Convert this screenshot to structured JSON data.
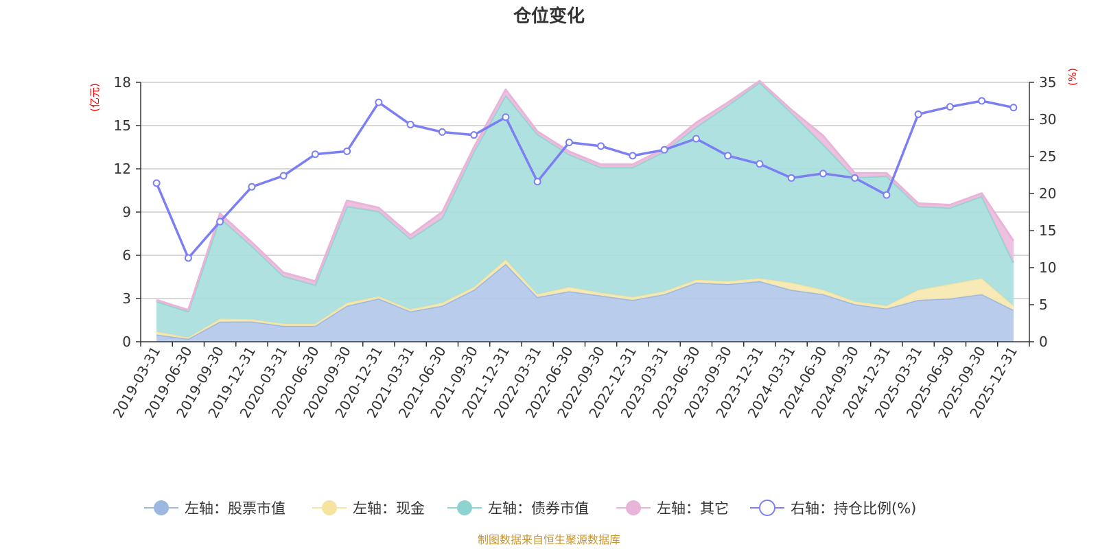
{
  "chart_data": {
    "type": "area",
    "title": "仓位变化",
    "left_axis_unit": "(亿元)",
    "right_axis_unit": "(%)",
    "left_ylim": [
      0,
      18
    ],
    "left_ticks": [
      0,
      3,
      6,
      9,
      12,
      15,
      18
    ],
    "right_ylim": [
      0,
      35
    ],
    "right_ticks": [
      0,
      5,
      10,
      15,
      20,
      25,
      30,
      35
    ],
    "categories": [
      "2019-03-31",
      "2019-06-30",
      "2019-09-30",
      "2019-12-31",
      "2020-03-31",
      "2020-06-30",
      "2020-09-30",
      "2020-12-31",
      "2021-03-31",
      "2021-06-30",
      "2021-09-30",
      "2021-12-31",
      "2022-03-31",
      "2022-06-30",
      "2022-09-30",
      "2022-12-31",
      "2023-03-31",
      "2023-06-30",
      "2023-09-30",
      "2023-12-31",
      "2024-03-31",
      "2024-06-30",
      "2024-09-30",
      "2024-12-31",
      "2025-03-31",
      "2025-06-30",
      "2025-09-30",
      "2025-12-31"
    ],
    "series": [
      {
        "name": "左轴：股票市值",
        "axis": "left",
        "stack": true,
        "color": "#9db8e0",
        "fill": "#b4c8ea",
        "values": [
          0.5,
          0.2,
          1.4,
          1.4,
          1.1,
          1.1,
          2.5,
          3.0,
          2.1,
          2.5,
          3.6,
          5.4,
          3.1,
          3.5,
          3.2,
          2.9,
          3.3,
          4.1,
          4.0,
          4.2,
          3.6,
          3.3,
          2.6,
          2.3,
          2.9,
          3.0,
          3.3,
          2.2
        ]
      },
      {
        "name": "左轴：现金",
        "axis": "left",
        "stack": true,
        "color": "#f5e3a0",
        "fill": "#f7e8b0",
        "values": [
          0.2,
          0.1,
          0.2,
          0.15,
          0.15,
          0.15,
          0.2,
          0.15,
          0.15,
          0.2,
          0.2,
          0.3,
          0.2,
          0.3,
          0.2,
          0.2,
          0.2,
          0.2,
          0.2,
          0.2,
          0.5,
          0.3,
          0.2,
          0.2,
          0.7,
          1.0,
          1.1,
          0.3
        ]
      },
      {
        "name": "左轴：债券市值",
        "axis": "left",
        "stack": true,
        "color": "#8fd3d0",
        "fill": "#a9dede",
        "values": [
          2.1,
          1.8,
          7.0,
          5.1,
          3.3,
          2.7,
          6.7,
          5.9,
          4.9,
          5.9,
          9.4,
          11.4,
          11.1,
          9.2,
          8.7,
          9.0,
          9.7,
          10.6,
          12.2,
          13.6,
          11.8,
          10.1,
          8.6,
          9.0,
          5.8,
          5.3,
          5.7,
          3.0
        ]
      },
      {
        "name": "左轴：其它",
        "axis": "left",
        "stack": true,
        "color": "#e8b4d8",
        "fill": "#ebbcdc",
        "values": [
          0.1,
          0.1,
          0.3,
          0.25,
          0.25,
          0.25,
          0.4,
          0.25,
          0.25,
          0.4,
          0.3,
          0.4,
          0.2,
          0.2,
          0.2,
          0.2,
          0.2,
          0.3,
          0.2,
          0.1,
          0.2,
          0.6,
          0.3,
          0.2,
          0.2,
          0.2,
          0.2,
          1.5
        ]
      },
      {
        "name": "右轴：持仓比例(%)",
        "axis": "right",
        "type": "line",
        "color": "#7b7ff2",
        "values": [
          21.4,
          11.3,
          16.2,
          20.9,
          22.4,
          25.3,
          25.7,
          32.3,
          29.3,
          28.3,
          27.9,
          30.3,
          21.6,
          26.9,
          26.4,
          25.1,
          25.9,
          27.4,
          25.1,
          24.0,
          22.1,
          22.7,
          22.1,
          19.8,
          30.7,
          31.7,
          32.5,
          31.6
        ]
      }
    ],
    "legend_position": "bottom-center",
    "grid": true,
    "source": "制图数据来自恒生聚源数据库"
  }
}
